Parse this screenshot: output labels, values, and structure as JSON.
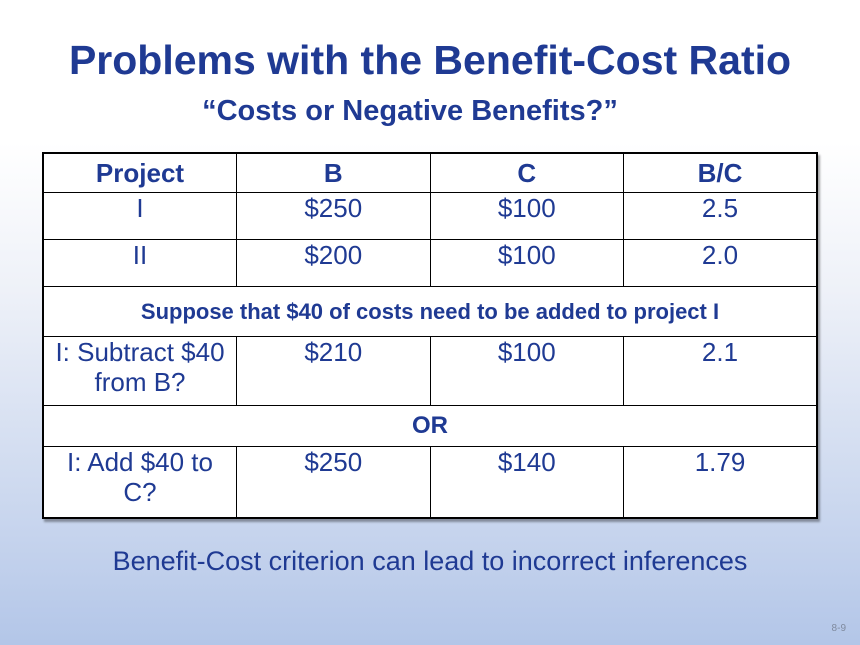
{
  "slide": {
    "title": "Problems with the Benefit-Cost Ratio",
    "subtitle": "“Costs or Negative Benefits?”",
    "footer": "Benefit-Cost criterion can lead to incorrect inferences",
    "page_number": "8-9"
  },
  "table": {
    "headers": [
      "Project",
      "B",
      "C",
      "B/C"
    ],
    "rows": [
      [
        "I",
        "$250",
        "$100",
        "2.5"
      ],
      [
        "II",
        "$200",
        "$100",
        "2.0"
      ]
    ],
    "note": "Suppose that $40 of costs need to be added to project I",
    "option1": [
      "I: Subtract $40 from B?",
      "$210",
      "$100",
      "2.1"
    ],
    "or_label": "OR",
    "option2": [
      "I: Add $40 to C?",
      "$250",
      "$140",
      "1.79"
    ]
  }
}
